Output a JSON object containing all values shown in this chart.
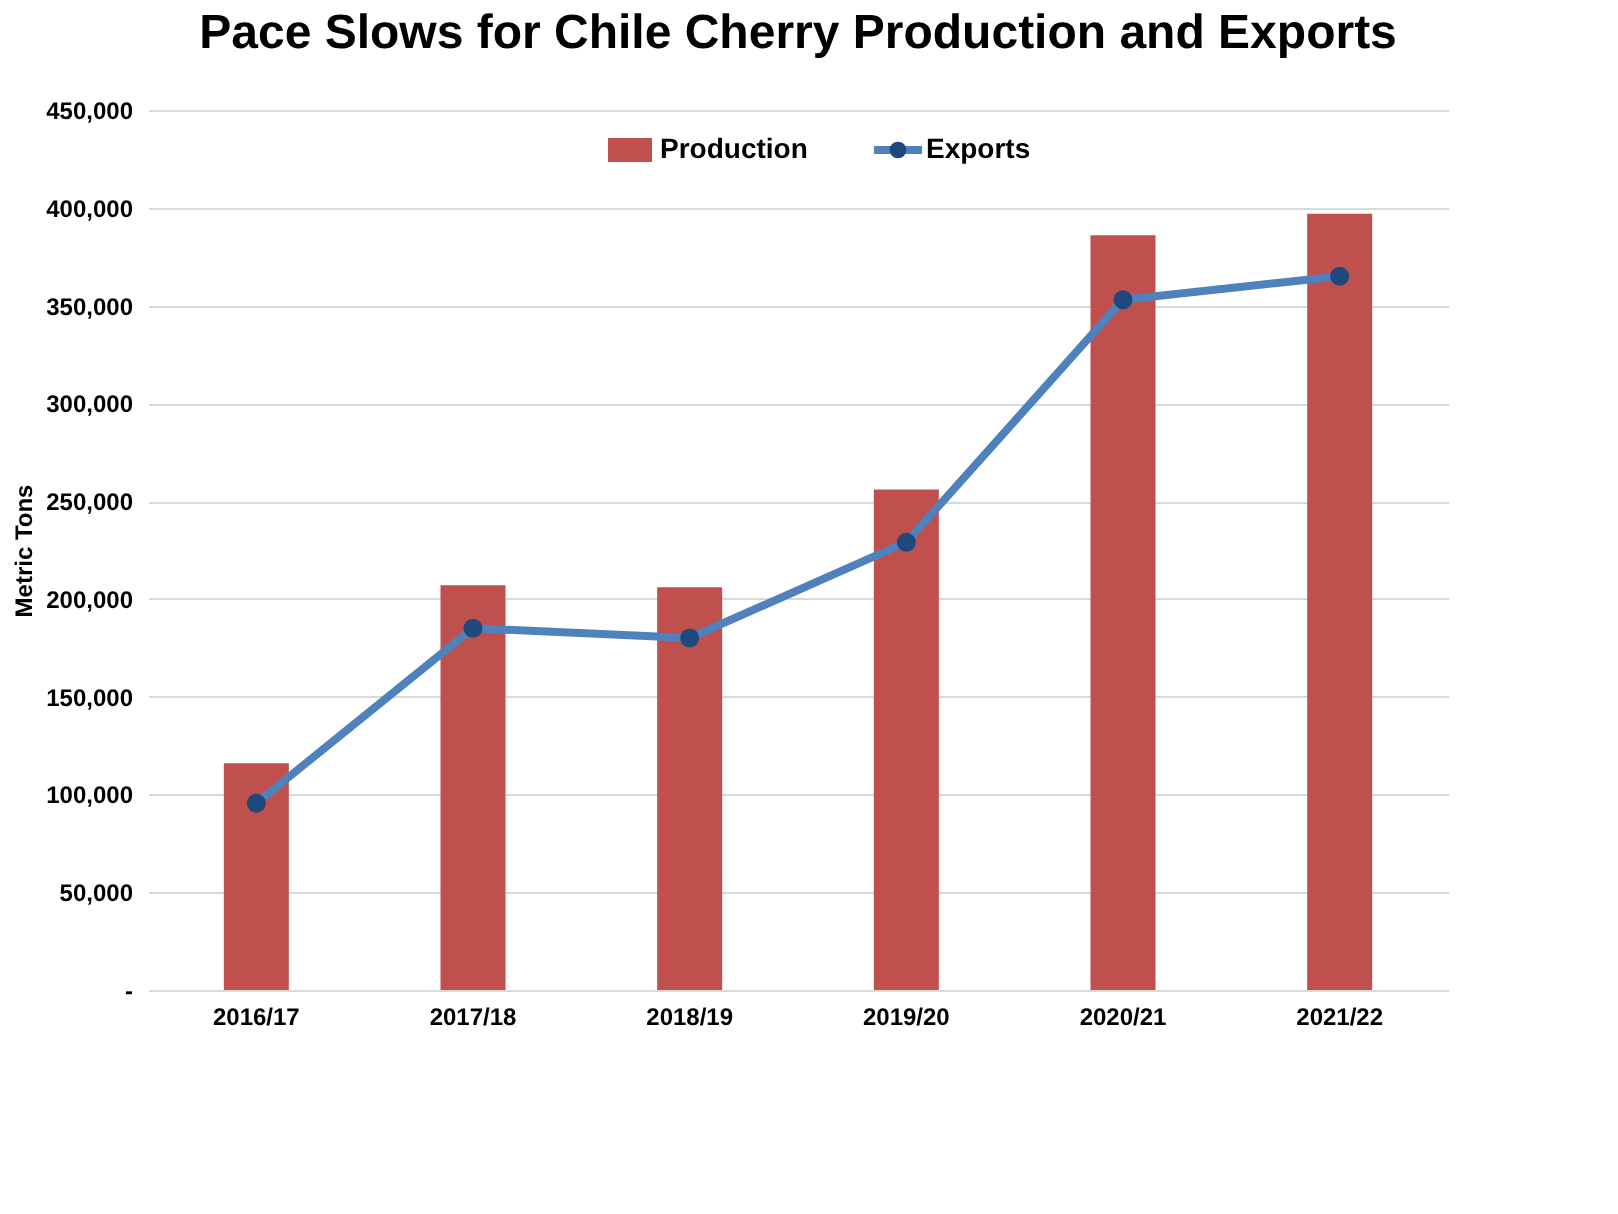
{
  "chart_data": {
    "type": "bar",
    "title": "Pace Slows for Chile Cherry Production and Exports",
    "ylabel": "Metric Tons",
    "categories": [
      "2016/17",
      "2017/18",
      "2018/19",
      "2019/20",
      "2020/21",
      "2021/22"
    ],
    "series": [
      {
        "name": "Production",
        "color": "#c0504d",
        "values": [
          116000,
          207000,
          206000,
          256000,
          386000,
          397000
        ]
      },
      {
        "name": "Exports",
        "type": "line",
        "color": "#4f81bd",
        "marker": "circle",
        "values": [
          95500,
          185000,
          180000,
          229000,
          353000,
          365000
        ]
      }
    ],
    "ylim": [
      0,
      450000
    ],
    "yticks": [
      {
        "value": 0,
        "label": "-"
      },
      {
        "value": 50000,
        "label": "50,000"
      },
      {
        "value": 100000,
        "label": "100,000"
      },
      {
        "value": 150000,
        "label": "150,000"
      },
      {
        "value": 200000,
        "label": "200,000"
      },
      {
        "value": 250000,
        "label": "250,000"
      },
      {
        "value": 300000,
        "label": "300,000"
      },
      {
        "value": 350000,
        "label": "350,000"
      },
      {
        "value": 400000,
        "label": "400,000"
      },
      {
        "value": 450000,
        "label": "450,000"
      }
    ],
    "grid": "y",
    "legend": "top"
  }
}
